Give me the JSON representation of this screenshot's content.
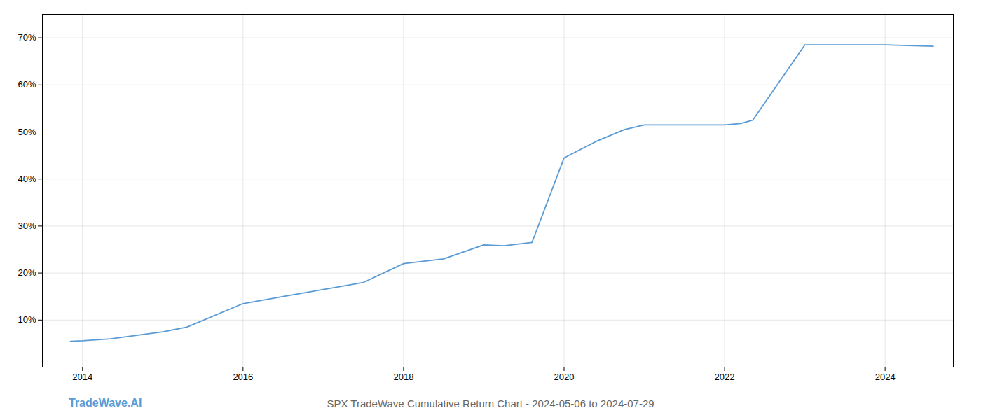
{
  "chart_data": {
    "type": "line",
    "title": "SPX TradeWave Cumulative Return Chart - 2024-05-06 to 2024-07-29",
    "annotations": [
      "TradeWave.AI"
    ],
    "color": "#5b9bd5",
    "x": [
      2013.85,
      2014.0,
      2014.35,
      2015.0,
      2015.3,
      2016.0,
      2016.5,
      2017.0,
      2017.5,
      2018.0,
      2018.5,
      2019.0,
      2019.25,
      2019.6,
      2020.0,
      2020.4,
      2020.75,
      2021.0,
      2021.3,
      2021.6,
      2022.0,
      2022.2,
      2022.35,
      2023.0,
      2023.5,
      2024.0,
      2024.6
    ],
    "values": [
      5.5,
      5.6,
      6.0,
      7.5,
      8.5,
      13.5,
      15.0,
      16.5,
      18.0,
      22.0,
      23.0,
      26.0,
      25.8,
      26.5,
      44.5,
      48.0,
      50.5,
      51.5,
      51.5,
      51.5,
      51.5,
      51.8,
      52.5,
      68.5,
      68.5,
      68.5,
      68.2
    ],
    "xlim": [
      2013.5,
      2024.85
    ],
    "ylim": [
      0,
      75
    ],
    "xticks": [
      2014,
      2016,
      2018,
      2020,
      2022,
      2024
    ],
    "yticks": [
      {
        "value": 10,
        "label": "10%"
      },
      {
        "value": 20,
        "label": "20%"
      },
      {
        "value": 30,
        "label": "30%"
      },
      {
        "value": 40,
        "label": "40%"
      },
      {
        "value": 50,
        "label": "50%"
      },
      {
        "value": 60,
        "label": "60%"
      },
      {
        "value": 70,
        "label": "70%"
      }
    ],
    "grid": true
  }
}
